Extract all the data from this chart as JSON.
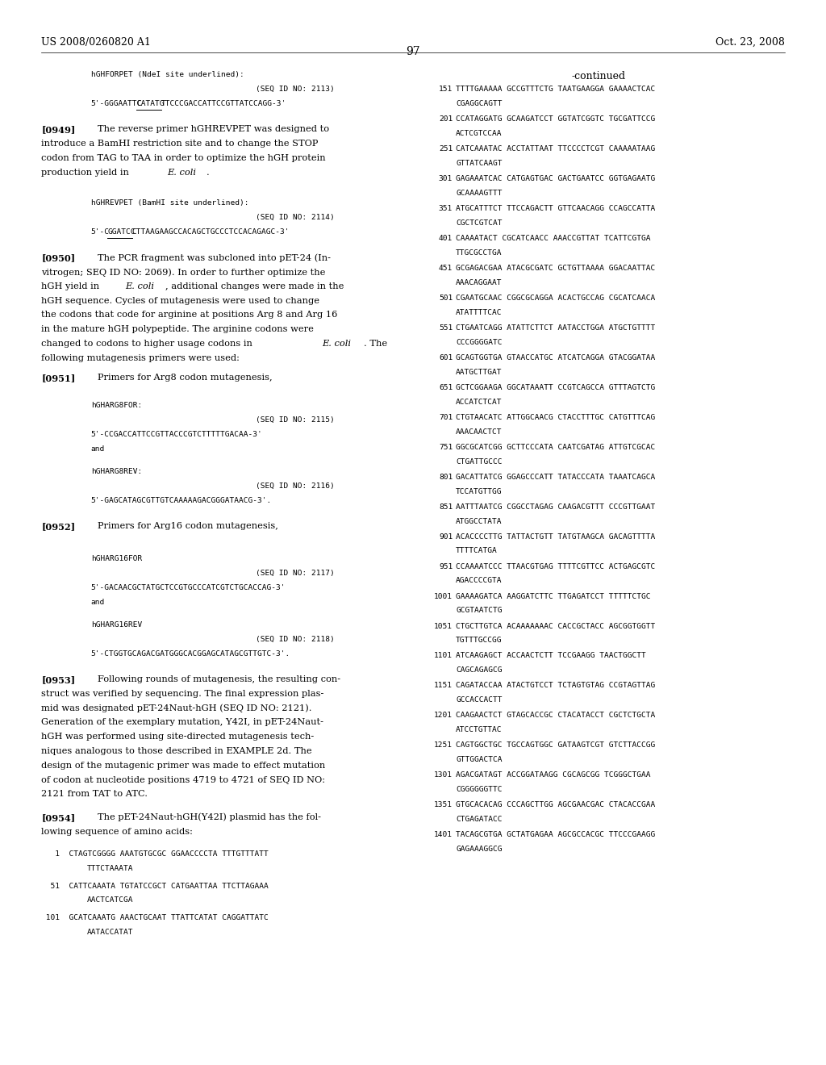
{
  "page_header_left": "US 2008/0260820 A1",
  "page_header_right": "Oct. 23, 2008",
  "page_number": "97",
  "background_color": "#ffffff",
  "text_color": "#000000",
  "seq_data_right": [
    [
      "151",
      "TTTTGAAAAA GCCGTTTCTG TAATGAAGGA GAAAACTCAC",
      "CGAGGCAGTT"
    ],
    [
      "201",
      "CCATAGGATG GCAAGATCCT GGTATCGGTC TGCGATTCCG",
      "ACTCGTCCAA"
    ],
    [
      "251",
      "CATCAAATAC ACCTATTAAT TTCCCCTCGT CAAAAATAAG",
      "GTTATCAAGT"
    ],
    [
      "301",
      "GAGAAATCAC CATGAGTGAC GACTGAATCC GGTGAGAATG",
      "GCAAAAGTTT"
    ],
    [
      "351",
      "ATGCATTTCT TTCCAGACTT GTTCAACAGG CCAGCCATTA",
      "CGCTCGTCAT"
    ],
    [
      "401",
      "CAAAATACT CGCATCAACC AAACCGTTAT TCATTCGTGA",
      "TTGCGCCTGA"
    ],
    [
      "451",
      "GCGAGACGAA ATACGCGATC GCTGTTAAAA GGACAATTAC",
      "AAACAGGAAT"
    ],
    [
      "501",
      "CGAATGCAAC CGGCGCAGGA ACACTGCCAG CGCATCAACA",
      "ATATTTTCAC"
    ],
    [
      "551",
      "CTGAATCAGG ATATTCTTCT AATACCTGGA ATGCTGTTTT",
      "CCCGGGGATC"
    ],
    [
      "601",
      "GCAGTGGTGA GTAACCATGC ATCATCAGGA GTACGGATAA",
      "AATGCTTGAT"
    ],
    [
      "651",
      "GCTCGGAAGA GGCATAAATT CCGTCAGCCA GTTTAGTCTG",
      "ACCATCTCAT"
    ],
    [
      "701",
      "CTGTAACATC ATTGGCAACG CTACCTTTGC CATGTTTCAG",
      "AAACAACTCT"
    ],
    [
      "751",
      "GGCGCATCGG GCTTCCCATA CAATCGATAG ATTGTCGCAC",
      "CTGATTGCCC"
    ],
    [
      "801",
      "GACATTATCG GGAGCCCATT TATACCCATA TAAATCAGCA",
      "TCCATGTTGG"
    ],
    [
      "851",
      "AATTTAATCG CGGCCTAGAG CAAGACGTTT CCCGTTGAAT",
      "ATGGCCTATA"
    ],
    [
      "901",
      "ACACCCCTTG TATTACTGTT TATGTAAGCA GACAGTTTTA",
      "TTTTCATGA"
    ],
    [
      "951",
      "CCAAAATCCC TTAACGTGAG TTTTCGTTCC ACTGAGCGTC",
      "AGACCCCGTA"
    ],
    [
      "1001",
      "GAAAAGATCA AAGGATCTTC TTGAGATCCT TTTTTCTGC",
      "GCGTAATCTG"
    ],
    [
      "1051",
      "CTGCTTGTCA ACAAAAAAAC CACCGCTACC AGCGGTGGTT",
      "TGTTTGCCGG"
    ],
    [
      "1101",
      "ATCAAGAGCT ACCAACTCTT TCCGAAGG TAACTGGCTT",
      "CAGCAGAGCG"
    ],
    [
      "1151",
      "CAGATACCAA ATACTGTCCT TCTAGTGTAG CCGTAGTTAG",
      "GCCACCACTT"
    ],
    [
      "1201",
      "CAAGAACTCT GTAGCACCGC CTACATACCT CGCTCTGCTA",
      "ATCCTGTTAC"
    ],
    [
      "1251",
      "CAGTGGCTGC TGCCAGTGGC GATAAGTCGT GTCTTACCGG",
      "GTTGGACTCA"
    ],
    [
      "1301",
      "AGACGATAGT ACCGGATAAGG CGCAGCGG TCGGGCTGAA",
      "CGGGGGGTTC"
    ],
    [
      "1351",
      "GTGCACACAG CCCAGCTTGG AGCGAACGAC CTACACCGAA",
      "CTGAGATACC"
    ],
    [
      "1401",
      "TACAGCGTGA GCTATGAGAA AGCGCCACGC TTCCCGAAGG",
      "GAGAAAGGCG"
    ]
  ]
}
